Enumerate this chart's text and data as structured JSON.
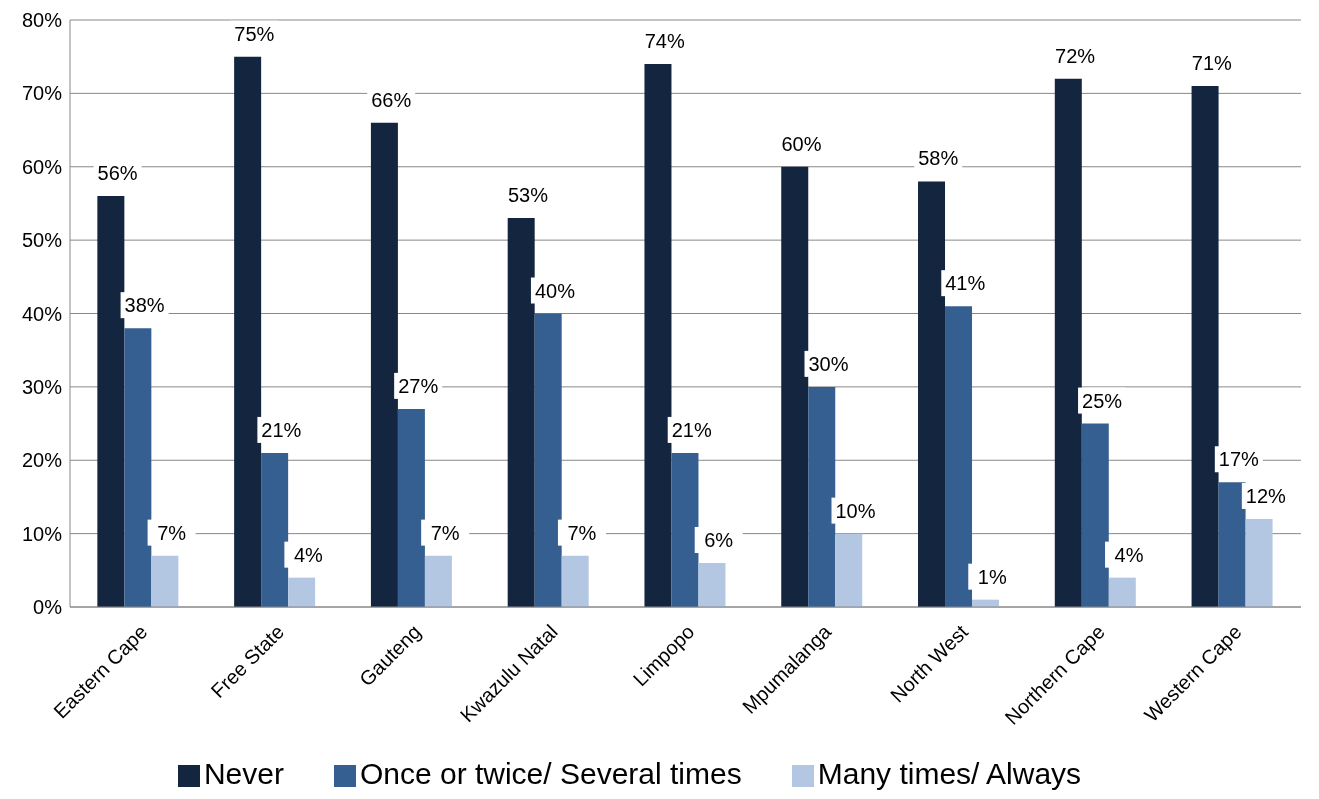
{
  "chart_data": {
    "type": "bar",
    "categories": [
      "Eastern Cape",
      "Free State",
      "Gauteng",
      "Kwazulu Natal",
      "Limpopo",
      "Mpumalanga",
      "North West",
      "Northern Cape",
      "Western Cape"
    ],
    "series": [
      {
        "name": "Never",
        "color": "#13253f",
        "values": [
          56,
          75,
          66,
          53,
          74,
          60,
          58,
          72,
          71
        ],
        "value_labels": [
          "56%",
          "75%",
          "66%",
          "53%",
          "74%",
          "60%",
          "58%",
          "72%",
          "71%"
        ]
      },
      {
        "name": "Once or twice/ Several times",
        "color": "#355f91",
        "values": [
          38,
          21,
          27,
          40,
          21,
          30,
          41,
          25,
          17
        ],
        "value_labels": [
          "38%",
          "21%",
          "27%",
          "40%",
          "21%",
          "30%",
          "41%",
          "25%",
          "17%"
        ]
      },
      {
        "name": "Many times/ Always",
        "color": "#b3c7e3",
        "values": [
          7,
          4,
          7,
          7,
          6,
          10,
          1,
          4,
          12
        ],
        "value_labels": [
          "7%",
          "4%",
          "7%",
          "7%",
          "6%",
          "10%",
          "1%",
          "4%",
          "12%"
        ]
      }
    ],
    "ylim": [
      0,
      80
    ],
    "yticks": [
      {
        "value": 0,
        "label": "0%"
      },
      {
        "value": 10,
        "label": "10%"
      },
      {
        "value": 20,
        "label": "20%"
      },
      {
        "value": 30,
        "label": "30%"
      },
      {
        "value": 40,
        "label": "40%"
      },
      {
        "value": 50,
        "label": "50%"
      },
      {
        "value": 60,
        "label": "60%"
      },
      {
        "value": 70,
        "label": "70%"
      },
      {
        "value": 80,
        "label": "80%"
      }
    ],
    "grid": "y",
    "legend": "bottom"
  }
}
